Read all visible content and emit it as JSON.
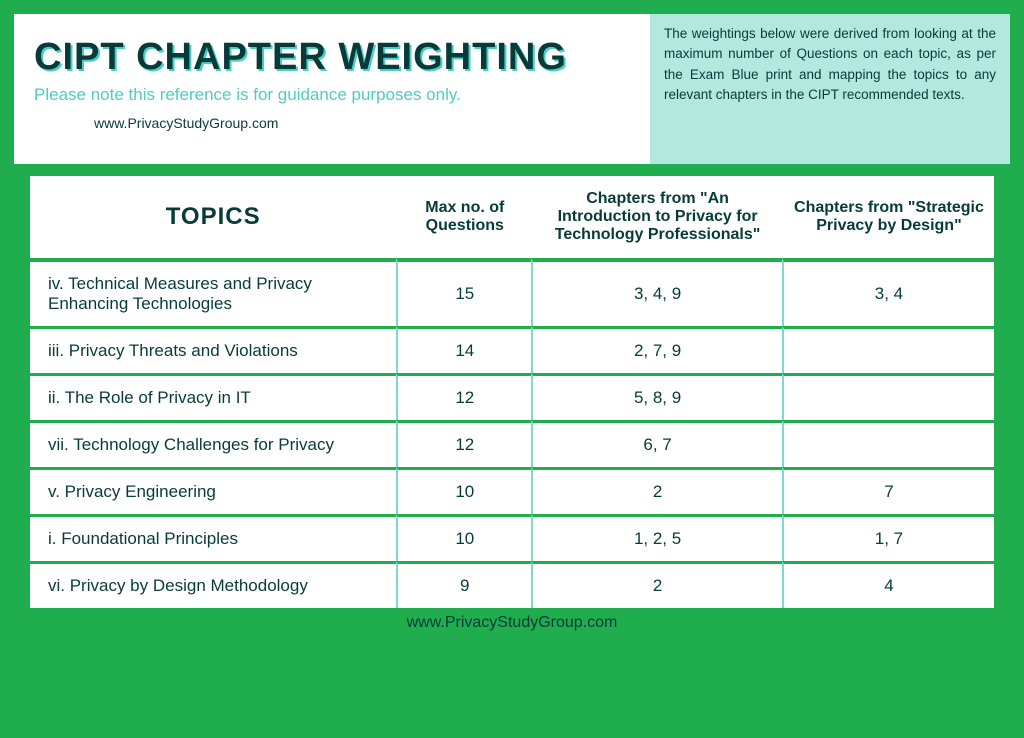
{
  "header": {
    "title": "CIPT CHAPTER WEIGHTING",
    "subtitle": "Please note this reference is for guidance purposes only.",
    "url": "www.PrivacyStudyGroup.com",
    "info": "The weightings below were derived from looking at the maximum number of Questions on each topic, as per the Exam Blue print and mapping the topics to any relevant chapters in the CIPT recommended texts."
  },
  "table": {
    "columns": {
      "topics": "TOPICS",
      "max_q": "Max no. of Questions",
      "ch1": "Chapters from  \"An Introduction to Privacy for Technology Professionals\"",
      "ch2": "Chapters from \"Strategic Privacy by Design\""
    },
    "rows": [
      {
        "topic": "iv. Technical Measures and Privacy Enhancing Technologies",
        "max_q": "15",
        "ch1": "3, 4, 9",
        "ch2": "3, 4"
      },
      {
        "topic": "iii. Privacy Threats and Violations",
        "max_q": "14",
        "ch1": "2, 7, 9",
        "ch2": ""
      },
      {
        "topic": "ii. The Role of Privacy in IT",
        "max_q": "12",
        "ch1": "5, 8, 9",
        "ch2": ""
      },
      {
        "topic": "vii. Technology Challenges for Privacy",
        "max_q": "12",
        "ch1": "6, 7",
        "ch2": ""
      },
      {
        "topic": "v. Privacy Engineering",
        "max_q": "10",
        "ch1": "2",
        "ch2": "7"
      },
      {
        "topic": "i. Foundational Principles",
        "max_q": "10",
        "ch1": "1, 2, 5",
        "ch2": "1, 7"
      },
      {
        "topic": "vi. Privacy by Design Methodology",
        "max_q": "9",
        "ch1": "2",
        "ch2": "4"
      }
    ]
  },
  "footer": {
    "url": "www.PrivacyStudyGroup.com"
  },
  "colors": {
    "page_bg": "#1fad4e",
    "header_bg": "#ffffff",
    "info_bg": "#b3e8df",
    "text_dark": "#073b3a",
    "accent_teal": "#4ecdc4",
    "cell_divider": "#7ed9d0"
  }
}
